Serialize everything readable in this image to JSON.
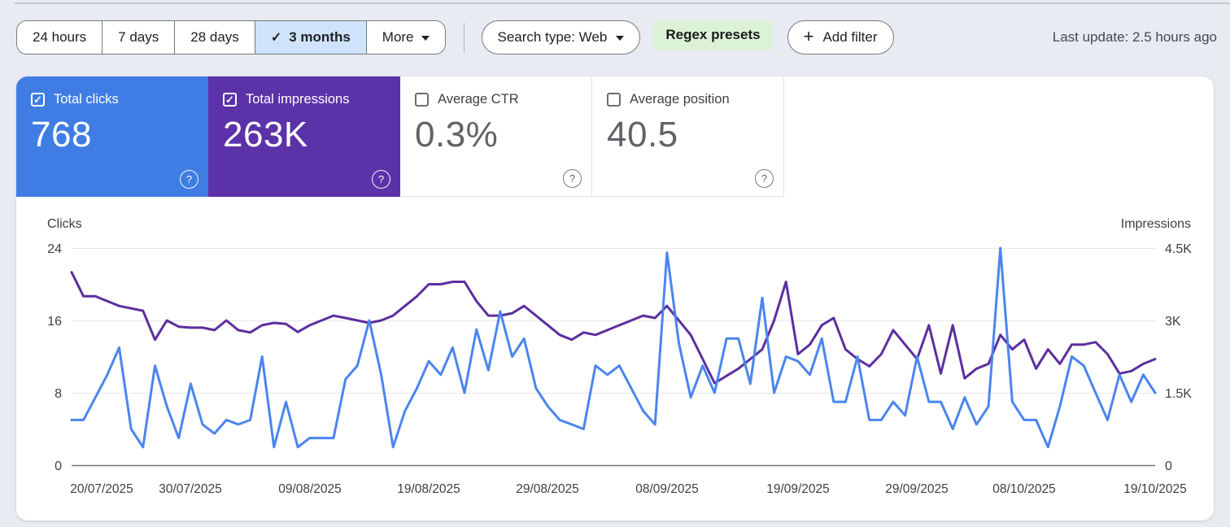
{
  "icons": {
    "check": "✓",
    "plus": "+",
    "help": "?"
  },
  "colors": {
    "clicks_card": "#3f7de4",
    "impressions_card": "#5b32a8",
    "selected_range_bg": "#cfe3fb",
    "regex_highlight_bg": "#dcf2d6",
    "clicks_line": "#4b85ee",
    "impressions_line": "#5c2f9e"
  },
  "toolbar": {
    "date_ranges": [
      {
        "label": "24 hours"
      },
      {
        "label": "7 days"
      },
      {
        "label": "28 days"
      },
      {
        "label": "3 months",
        "selected": true
      },
      {
        "label": "More"
      }
    ],
    "search_type_label": "Search type: Web",
    "regex_presets_label": "Regex presets",
    "add_filter_label": "Add filter",
    "last_update": "Last update: 2.5 hours ago"
  },
  "cards": [
    {
      "label": "Total clicks",
      "value": "768",
      "checked": true
    },
    {
      "label": "Total impressions",
      "value": "263K",
      "checked": true
    },
    {
      "label": "Average CTR",
      "value": "0.3%",
      "checked": false
    },
    {
      "label": "Average position",
      "value": "40.5",
      "checked": false
    }
  ],
  "chart_data": {
    "type": "line",
    "grid": "horizontal",
    "legend": "none",
    "left_axis": {
      "label": "Clicks",
      "ticks": [
        "24",
        "16",
        "8",
        "0"
      ],
      "range": [
        0,
        24
      ]
    },
    "right_axis": {
      "label": "Impressions",
      "ticks": [
        "4.5K",
        "3K",
        "1.5K",
        "0"
      ],
      "range": [
        0,
        4500
      ]
    },
    "x_tick_labels": [
      "20/07/2025",
      "30/07/2025",
      "09/08/2025",
      "19/08/2025",
      "29/08/2025",
      "08/09/2025",
      "19/09/2025",
      "29/09/2025",
      "08/10/2025",
      "19/10/2025"
    ],
    "x_range_days": 92,
    "series": [
      {
        "name": "Total clicks",
        "axis": "left",
        "color": "#4b85ee",
        "values": [
          5,
          5,
          7.5,
          10,
          13,
          4,
          2,
          11,
          6.5,
          3,
          9,
          4.5,
          3.5,
          5,
          4.5,
          5,
          12,
          2,
          7,
          2,
          3,
          3,
          3,
          9.5,
          11,
          16,
          10,
          2,
          6,
          8.5,
          11.5,
          10,
          13,
          8,
          15,
          10.5,
          17,
          12,
          14,
          8.5,
          6.5,
          5,
          4.5,
          4,
          11,
          10,
          11,
          8.5,
          6,
          4.5,
          23.5,
          13.5,
          7.5,
          11,
          8,
          14,
          14,
          9,
          18.5,
          8,
          12,
          11.5,
          10,
          14,
          7,
          7,
          12,
          5,
          5,
          7,
          5.5,
          12,
          7,
          7,
          4,
          7.5,
          4.5,
          6.5,
          24,
          7,
          5,
          5,
          2,
          6.5,
          12,
          11,
          8,
          5,
          10,
          7,
          10,
          8
        ]
      },
      {
        "name": "Total impressions",
        "axis": "right",
        "color": "#5c2f9e",
        "values": [
          4000,
          3500,
          3500,
          3400,
          3300,
          3250,
          3200,
          2600,
          3000,
          2870,
          2850,
          2850,
          2800,
          3000,
          2800,
          2750,
          2900,
          2950,
          2930,
          2760,
          2900,
          3000,
          3100,
          3050,
          3000,
          2950,
          3000,
          3100,
          3300,
          3500,
          3750,
          3750,
          3800,
          3800,
          3400,
          3100,
          3100,
          3150,
          3300,
          3100,
          2900,
          2700,
          2600,
          2750,
          2700,
          2800,
          2900,
          3000,
          3100,
          3050,
          3300,
          3000,
          2700,
          2200,
          1700,
          1850,
          2000,
          2200,
          2400,
          3000,
          3800,
          2300,
          2500,
          2900,
          3050,
          2400,
          2200,
          2050,
          2300,
          2800,
          2500,
          2200,
          2900,
          1900,
          2900,
          1800,
          2000,
          2100,
          2700,
          2400,
          2600,
          2000,
          2400,
          2100,
          2500,
          2500,
          2550,
          2300,
          1900,
          1950,
          2100,
          2200
        ]
      }
    ]
  }
}
